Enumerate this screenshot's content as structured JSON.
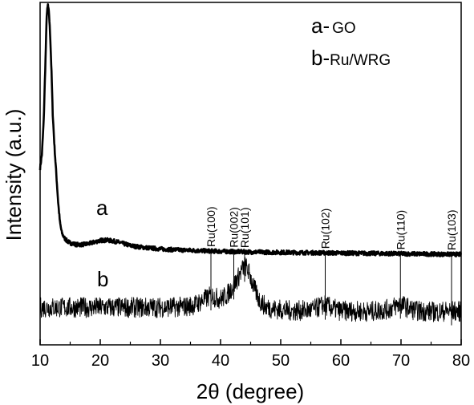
{
  "chart_data": {
    "type": "line",
    "xlabel": "2θ (degree)",
    "ylabel": "Intensity (a.u.)",
    "xlim": [
      10,
      80
    ],
    "xticks": [
      10,
      20,
      30,
      40,
      50,
      60,
      70,
      80
    ],
    "yticks_shown": false,
    "legend": {
      "placement": "top-right",
      "entries": [
        {
          "key": "a-",
          "text": "GO"
        },
        {
          "key": "b-",
          "text": "Ru/WRG"
        }
      ]
    },
    "series": [
      {
        "name": "a",
        "label": "a",
        "points": [
          [
            10.0,
            0.52
          ],
          [
            10.3,
            0.56
          ],
          [
            10.6,
            0.66
          ],
          [
            10.9,
            0.84
          ],
          [
            11.1,
            0.97
          ],
          [
            11.3,
            1.0
          ],
          [
            11.5,
            0.97
          ],
          [
            11.7,
            0.9
          ],
          [
            11.9,
            0.8
          ],
          [
            12.1,
            0.68
          ],
          [
            12.4,
            0.58
          ],
          [
            12.7,
            0.5
          ],
          [
            13.0,
            0.42
          ],
          [
            13.3,
            0.36
          ],
          [
            13.6,
            0.33
          ],
          [
            14.0,
            0.315
          ],
          [
            14.5,
            0.305
          ],
          [
            15.0,
            0.3
          ],
          [
            16.0,
            0.295
          ],
          [
            17.0,
            0.295
          ],
          [
            18.0,
            0.297
          ],
          [
            19.0,
            0.302
          ],
          [
            20.0,
            0.307
          ],
          [
            21.0,
            0.308
          ],
          [
            22.0,
            0.306
          ],
          [
            23.0,
            0.302
          ],
          [
            24.0,
            0.297
          ],
          [
            25.0,
            0.292
          ],
          [
            26.0,
            0.289
          ],
          [
            28.0,
            0.285
          ],
          [
            30.0,
            0.282
          ],
          [
            32.0,
            0.28
          ],
          [
            35.0,
            0.278
          ],
          [
            38.0,
            0.276
          ],
          [
            40.0,
            0.275
          ],
          [
            45.0,
            0.273
          ],
          [
            50.0,
            0.272
          ],
          [
            55.0,
            0.271
          ],
          [
            60.0,
            0.27
          ],
          [
            65.0,
            0.269
          ],
          [
            70.0,
            0.268
          ],
          [
            75.0,
            0.267
          ],
          [
            80.0,
            0.266
          ]
        ]
      },
      {
        "name": "b",
        "label": "b",
        "points": [
          [
            10.0,
            0.11
          ],
          [
            15.0,
            0.11
          ],
          [
            20.0,
            0.11
          ],
          [
            25.0,
            0.11
          ],
          [
            30.0,
            0.11
          ],
          [
            34.0,
            0.112
          ],
          [
            35.0,
            0.115
          ],
          [
            36.0,
            0.12
          ],
          [
            37.0,
            0.13
          ],
          [
            38.0,
            0.14
          ],
          [
            38.5,
            0.145
          ],
          [
            39.0,
            0.14
          ],
          [
            40.0,
            0.135
          ],
          [
            41.0,
            0.145
          ],
          [
            42.0,
            0.17
          ],
          [
            43.0,
            0.2
          ],
          [
            43.7,
            0.225
          ],
          [
            44.2,
            0.23
          ],
          [
            44.8,
            0.21
          ],
          [
            45.5,
            0.17
          ],
          [
            46.5,
            0.13
          ],
          [
            47.5,
            0.112
          ],
          [
            49.0,
            0.105
          ],
          [
            52.0,
            0.1
          ],
          [
            55.0,
            0.102
          ],
          [
            56.0,
            0.108
          ],
          [
            57.2,
            0.118
          ],
          [
            58.5,
            0.108
          ],
          [
            60.0,
            0.1
          ],
          [
            65.0,
            0.098
          ],
          [
            68.0,
            0.105
          ],
          [
            69.2,
            0.115
          ],
          [
            70.0,
            0.12
          ],
          [
            71.0,
            0.11
          ],
          [
            72.5,
            0.1
          ],
          [
            76.0,
            0.097
          ],
          [
            78.5,
            0.1
          ],
          [
            80.0,
            0.098
          ]
        ]
      }
    ],
    "reference_lines": [
      {
        "label": "Ru(100)",
        "x": 38.4
      },
      {
        "label": "Ru(002)",
        "x": 42.2
      },
      {
        "label": "Ru(101)",
        "x": 44.0
      },
      {
        "label": "Ru(102)",
        "x": 57.4
      },
      {
        "label": "Ru(110)",
        "x": 69.9
      },
      {
        "label": "Ru(103)",
        "x": 78.4
      }
    ]
  }
}
